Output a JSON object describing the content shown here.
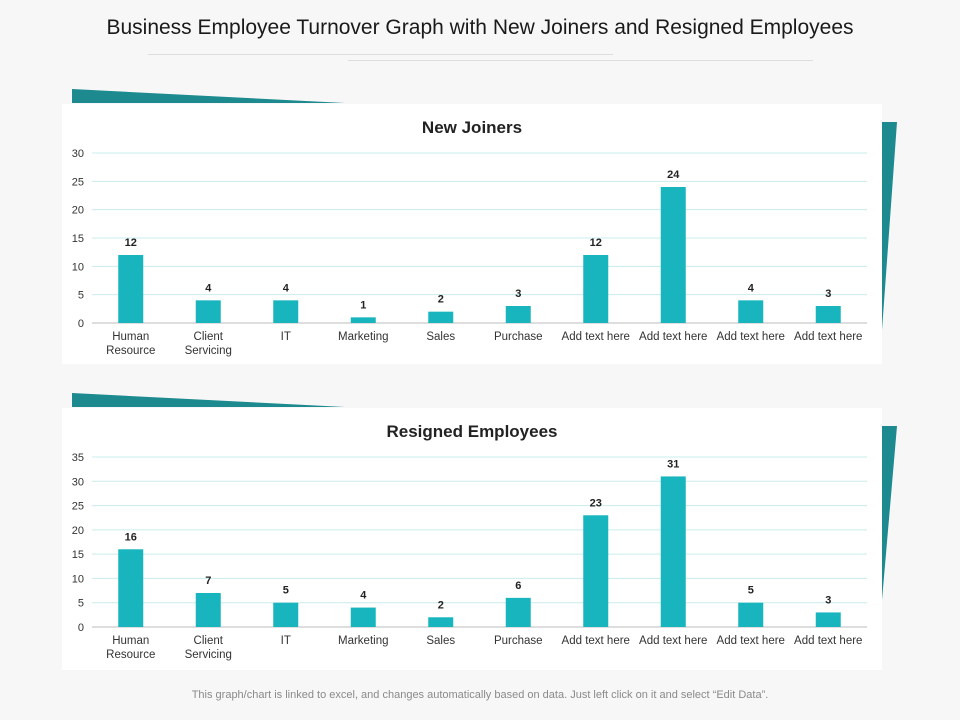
{
  "page": {
    "title": "Business Employee Turnover Graph with New Joiners and Resigned Employees",
    "footnote": "This graph/chart is linked to excel, and changes automatically based on data. Just left click on it and select “Edit Data”."
  },
  "colors": {
    "bar": "#19b5be",
    "accent_dark": "#1d8a8f",
    "grid": "#c9ecee",
    "background": "#f7f7f8"
  },
  "chart_data": [
    {
      "type": "bar",
      "title": "New Joiners",
      "categories": [
        [
          "Human",
          "Resource"
        ],
        [
          "Client",
          "Servicing"
        ],
        [
          "IT"
        ],
        [
          "Marketing"
        ],
        [
          "Sales"
        ],
        [
          "Purchase"
        ],
        [
          "Add text here"
        ],
        [
          "Add text here"
        ],
        [
          "Add text here"
        ],
        [
          "Add text here"
        ]
      ],
      "values": [
        12,
        4,
        4,
        1,
        2,
        3,
        12,
        24,
        4,
        3
      ],
      "ylim": [
        0,
        30
      ],
      "yticks": [
        0,
        5,
        10,
        15,
        20,
        25,
        30
      ],
      "xlabel": "",
      "ylabel": "",
      "grid": true,
      "legend": "none"
    },
    {
      "type": "bar",
      "title": "Resigned Employees",
      "categories": [
        [
          "Human",
          "Resource"
        ],
        [
          "Client",
          "Servicing"
        ],
        [
          "IT"
        ],
        [
          "Marketing"
        ],
        [
          "Sales"
        ],
        [
          "Purchase"
        ],
        [
          "Add text here"
        ],
        [
          "Add text here"
        ],
        [
          "Add text here"
        ],
        [
          "Add text here"
        ]
      ],
      "values": [
        16,
        7,
        5,
        4,
        2,
        6,
        23,
        31,
        5,
        3
      ],
      "ylim": [
        0,
        35
      ],
      "yticks": [
        0,
        5,
        10,
        15,
        20,
        25,
        30,
        35
      ],
      "xlabel": "",
      "ylabel": "",
      "grid": true,
      "legend": "none"
    }
  ]
}
